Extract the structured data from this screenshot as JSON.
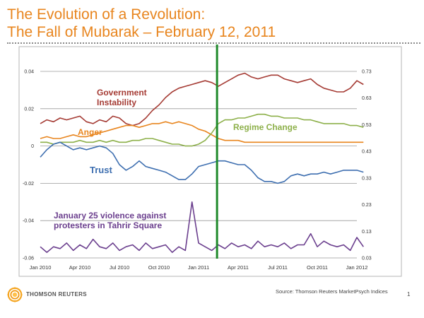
{
  "page": {
    "title_line1": "The Evolution of a Revolution:",
    "title_line2": "The Fall of Mubarak – February 12, 2011",
    "source": "Source: Thomson Reuters MarketPsych Indices",
    "page_number": "1",
    "logo_text": "THOMSON REUTERS"
  },
  "colors": {
    "title": "#e8851e",
    "government_instability": "#a53b34",
    "anger": "#e8851e",
    "regime_change": "#8db04a",
    "trust": "#3e6fb0",
    "violence": "#6b3f8e",
    "event_line": "#1f8a2b"
  },
  "chart_data": {
    "type": "line",
    "x_ticks": [
      "Jan 2010",
      "Apr 2010",
      "Jul 2010",
      "Oct 2010",
      "Jan 2011",
      "Apr 2011",
      "Jul 2011",
      "Oct 2011",
      "Jan 2012"
    ],
    "y_left": {
      "ticks": [
        "0.04",
        "0.02",
        "0",
        "-0.02",
        "-0.04",
        "-0.06"
      ],
      "range": [
        -0.06,
        0.04
      ]
    },
    "y_right": {
      "ticks": [
        "0.73",
        "0.63",
        "0.53",
        "0.43",
        "0.33",
        "0.23",
        "0.13",
        "0.03"
      ],
      "range": [
        0.03,
        0.73
      ]
    },
    "event_marker": {
      "date": "2011-02-12"
    },
    "grid": "horizontal",
    "annotations": {
      "government_instability": [
        "Government",
        "Instability"
      ],
      "anger": [
        "Anger"
      ],
      "regime_change": [
        "Regime Change"
      ],
      "trust": [
        "Trust"
      ],
      "violence": [
        "January 25 violence against",
        "protesters in Tahrir Square"
      ]
    },
    "series": [
      {
        "key": "government_instability",
        "x": [
          0,
          0.5,
          1,
          1.5,
          2,
          2.5,
          3,
          3.5,
          4,
          4.5,
          5,
          5.5,
          6,
          6.5,
          7,
          7.5,
          8,
          8.5,
          9,
          9.5,
          10,
          10.5,
          11,
          11.5,
          12,
          12.5,
          13,
          13.5,
          14,
          14.5,
          15,
          15.5,
          16,
          16.5,
          17,
          17.5,
          18,
          18.5,
          19,
          19.5,
          20,
          20.5,
          21,
          21.5,
          22,
          22.5,
          23,
          23.5,
          24,
          24.5
        ],
        "y": [
          0.012,
          0.014,
          0.013,
          0.015,
          0.014,
          0.015,
          0.016,
          0.013,
          0.012,
          0.014,
          0.013,
          0.016,
          0.015,
          0.012,
          0.011,
          0.012,
          0.015,
          0.019,
          0.022,
          0.026,
          0.029,
          0.031,
          0.032,
          0.033,
          0.034,
          0.035,
          0.034,
          0.032,
          0.034,
          0.036,
          0.038,
          0.039,
          0.037,
          0.036,
          0.037,
          0.038,
          0.038,
          0.036,
          0.035,
          0.034,
          0.035,
          0.036,
          0.033,
          0.031,
          0.03,
          0.029,
          0.029,
          0.031,
          0.035,
          0.033
        ]
      },
      {
        "key": "anger",
        "x": [
          0,
          0.5,
          1,
          1.5,
          2,
          2.5,
          3,
          3.5,
          4,
          4.5,
          5,
          5.5,
          6,
          6.5,
          7,
          7.5,
          8,
          8.5,
          9,
          9.5,
          10,
          10.5,
          11,
          11.5,
          12,
          12.5,
          13,
          13.5,
          14,
          14.5,
          15,
          15.5,
          16,
          16.5,
          17,
          17.5,
          18,
          18.5,
          19,
          19.5,
          20,
          20.5,
          21,
          21.5,
          22,
          22.5,
          23,
          23.5,
          24,
          24.5
        ],
        "y": [
          0.004,
          0.005,
          0.004,
          0.004,
          0.005,
          0.006,
          0.005,
          0.005,
          0.006,
          0.007,
          0.008,
          0.009,
          0.01,
          0.011,
          0.011,
          0.01,
          0.011,
          0.012,
          0.012,
          0.013,
          0.012,
          0.013,
          0.012,
          0.011,
          0.009,
          0.008,
          0.006,
          0.004,
          0.003,
          0.003,
          0.003,
          0.002,
          0.002,
          0.002,
          0.002,
          0.002,
          0.002,
          0.002,
          0.002,
          0.002,
          0.002,
          0.002,
          0.002,
          0.002,
          0.002,
          0.002,
          0.002,
          0.002,
          0.002,
          0.002
        ]
      },
      {
        "key": "regime_change",
        "x": [
          0,
          0.5,
          1,
          1.5,
          2,
          2.5,
          3,
          3.5,
          4,
          4.5,
          5,
          5.5,
          6,
          6.5,
          7,
          7.5,
          8,
          8.5,
          9,
          9.5,
          10,
          10.5,
          11,
          11.5,
          12,
          12.5,
          13,
          13.5,
          14,
          14.5,
          15,
          15.5,
          16,
          16.5,
          17,
          17.5,
          18,
          18.5,
          19,
          19.5,
          20,
          20.5,
          21,
          21.5,
          22,
          22.5,
          23,
          23.5,
          24,
          24.5
        ],
        "y": [
          0.002,
          0.002,
          0.001,
          0.002,
          0.002,
          0.002,
          0.003,
          0.002,
          0.002,
          0.003,
          0.002,
          0.003,
          0.002,
          0.002,
          0.003,
          0.003,
          0.004,
          0.004,
          0.003,
          0.002,
          0.001,
          0.001,
          0.0,
          0.0,
          0.001,
          0.003,
          0.007,
          0.012,
          0.014,
          0.014,
          0.015,
          0.015,
          0.016,
          0.017,
          0.017,
          0.016,
          0.016,
          0.015,
          0.015,
          0.015,
          0.014,
          0.014,
          0.013,
          0.012,
          0.012,
          0.012,
          0.012,
          0.011,
          0.011,
          0.01
        ]
      },
      {
        "key": "trust",
        "x": [
          0,
          0.5,
          1,
          1.5,
          2,
          2.5,
          3,
          3.5,
          4,
          4.5,
          5,
          5.5,
          6,
          6.5,
          7,
          7.5,
          8,
          8.5,
          9,
          9.5,
          10,
          10.5,
          11,
          11.5,
          12,
          12.5,
          13,
          13.5,
          14,
          14.5,
          15,
          15.5,
          16,
          16.5,
          17,
          17.5,
          18,
          18.5,
          19,
          19.5,
          20,
          20.5,
          21,
          21.5,
          22,
          22.5,
          23,
          23.5,
          24,
          24.5
        ],
        "y": [
          -0.006,
          -0.002,
          0.001,
          0.002,
          0.0,
          -0.002,
          -0.001,
          -0.002,
          -0.001,
          0.0,
          -0.001,
          -0.004,
          -0.01,
          -0.013,
          -0.011,
          -0.008,
          -0.011,
          -0.012,
          -0.013,
          -0.014,
          -0.016,
          -0.018,
          -0.018,
          -0.015,
          -0.011,
          -0.01,
          -0.009,
          -0.008,
          -0.008,
          -0.009,
          -0.01,
          -0.01,
          -0.013,
          -0.017,
          -0.019,
          -0.019,
          -0.02,
          -0.019,
          -0.016,
          -0.015,
          -0.016,
          -0.015,
          -0.015,
          -0.014,
          -0.015,
          -0.014,
          -0.013,
          -0.013,
          -0.013,
          -0.014
        ]
      },
      {
        "key": "violence",
        "x": [
          0,
          0.5,
          1,
          1.5,
          2,
          2.5,
          3,
          3.5,
          4,
          4.5,
          5,
          5.5,
          6,
          6.5,
          7,
          7.5,
          8,
          8.5,
          9,
          9.5,
          10,
          10.5,
          11,
          11.5,
          12,
          12.5,
          13,
          13.5,
          14,
          14.5,
          15,
          15.5,
          16,
          16.5,
          17,
          17.5,
          18,
          18.5,
          19,
          19.5,
          20,
          20.5,
          21,
          21.5,
          22,
          22.5,
          23,
          23.5,
          24,
          24.5
        ],
        "y": [
          -0.054,
          -0.057,
          -0.054,
          -0.055,
          -0.052,
          -0.056,
          -0.053,
          -0.055,
          -0.05,
          -0.054,
          -0.055,
          -0.052,
          -0.056,
          -0.054,
          -0.053,
          -0.056,
          -0.052,
          -0.055,
          -0.054,
          -0.053,
          -0.057,
          -0.054,
          -0.056,
          -0.03,
          -0.052,
          -0.054,
          -0.056,
          -0.053,
          -0.055,
          -0.052,
          -0.054,
          -0.053,
          -0.055,
          -0.051,
          -0.054,
          -0.053,
          -0.054,
          -0.052,
          -0.055,
          -0.053,
          -0.053,
          -0.047,
          -0.054,
          -0.051,
          -0.053,
          -0.054,
          -0.053,
          -0.056,
          -0.049,
          -0.054
        ]
      }
    ]
  }
}
